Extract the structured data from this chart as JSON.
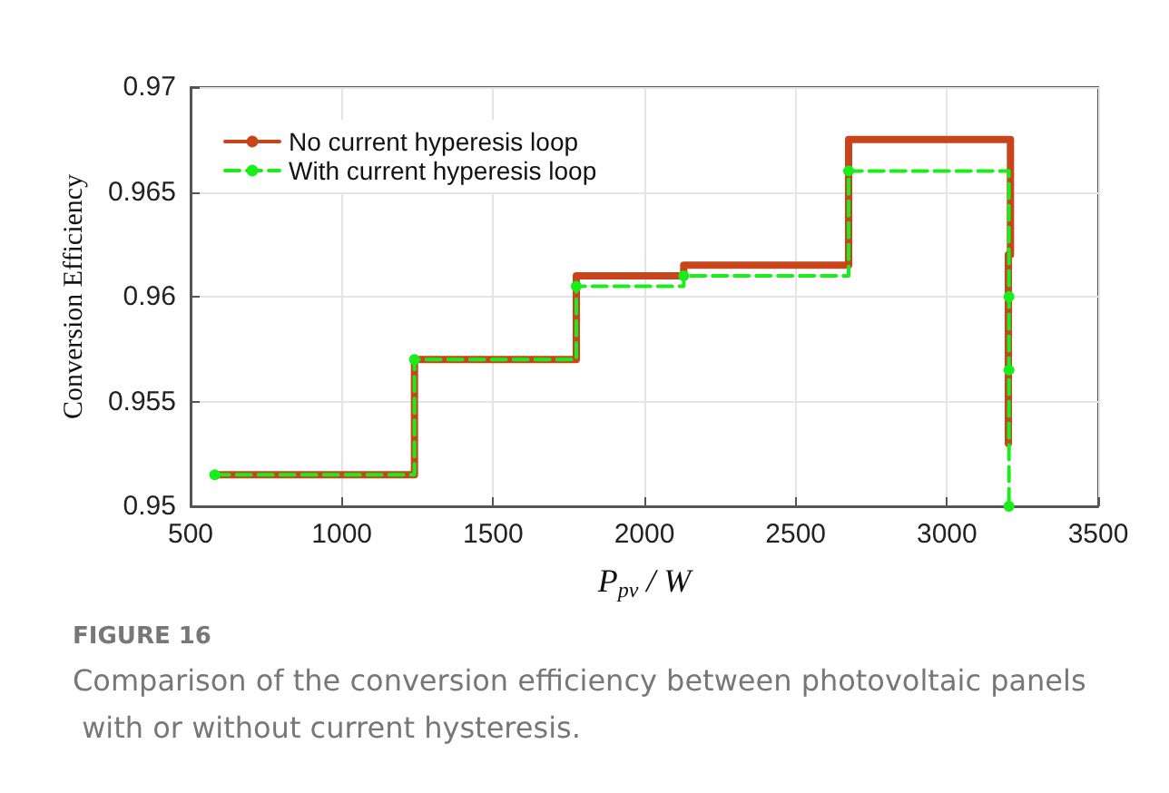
{
  "chart_data": {
    "type": "step",
    "xlabel": "P$_{pv}$ / W",
    "ylabel": "Conversion Efficiency",
    "xlim": [
      500,
      3500
    ],
    "xticks": [
      500,
      1000,
      1500,
      2000,
      2500,
      3000,
      3500
    ],
    "ylim": [
      0.95,
      0.97
    ],
    "yticks": [
      0.95,
      0.955,
      0.96,
      0.965,
      0.97
    ],
    "grid": true,
    "legend": "top left",
    "series": [
      {
        "name": "No current hyperesis loop",
        "color": "#c8441a",
        "line_style": "solid",
        "marker": "none",
        "x": [
          580,
          1240,
          1775,
          2130,
          2675,
          3210,
          3203
        ],
        "values": [
          0.9515,
          0.957,
          0.961,
          0.9615,
          0.9675,
          0.962,
          0.953
        ]
      },
      {
        "name": "With current hyperesis loop",
        "color": "#1aee1a",
        "line_style": "dashed",
        "marker": "circle",
        "x": [
          580,
          1240,
          1775,
          2130,
          2675,
          3205,
          3205,
          3205
        ],
        "values": [
          0.9515,
          0.957,
          0.9605,
          0.961,
          0.966,
          0.96,
          0.9565,
          0.95
        ]
      }
    ],
    "annotations": [
      "FIGURE 16",
      "Comparison of the conversion efficiency between photovoltaic panels with or without current hysteresis."
    ]
  }
}
